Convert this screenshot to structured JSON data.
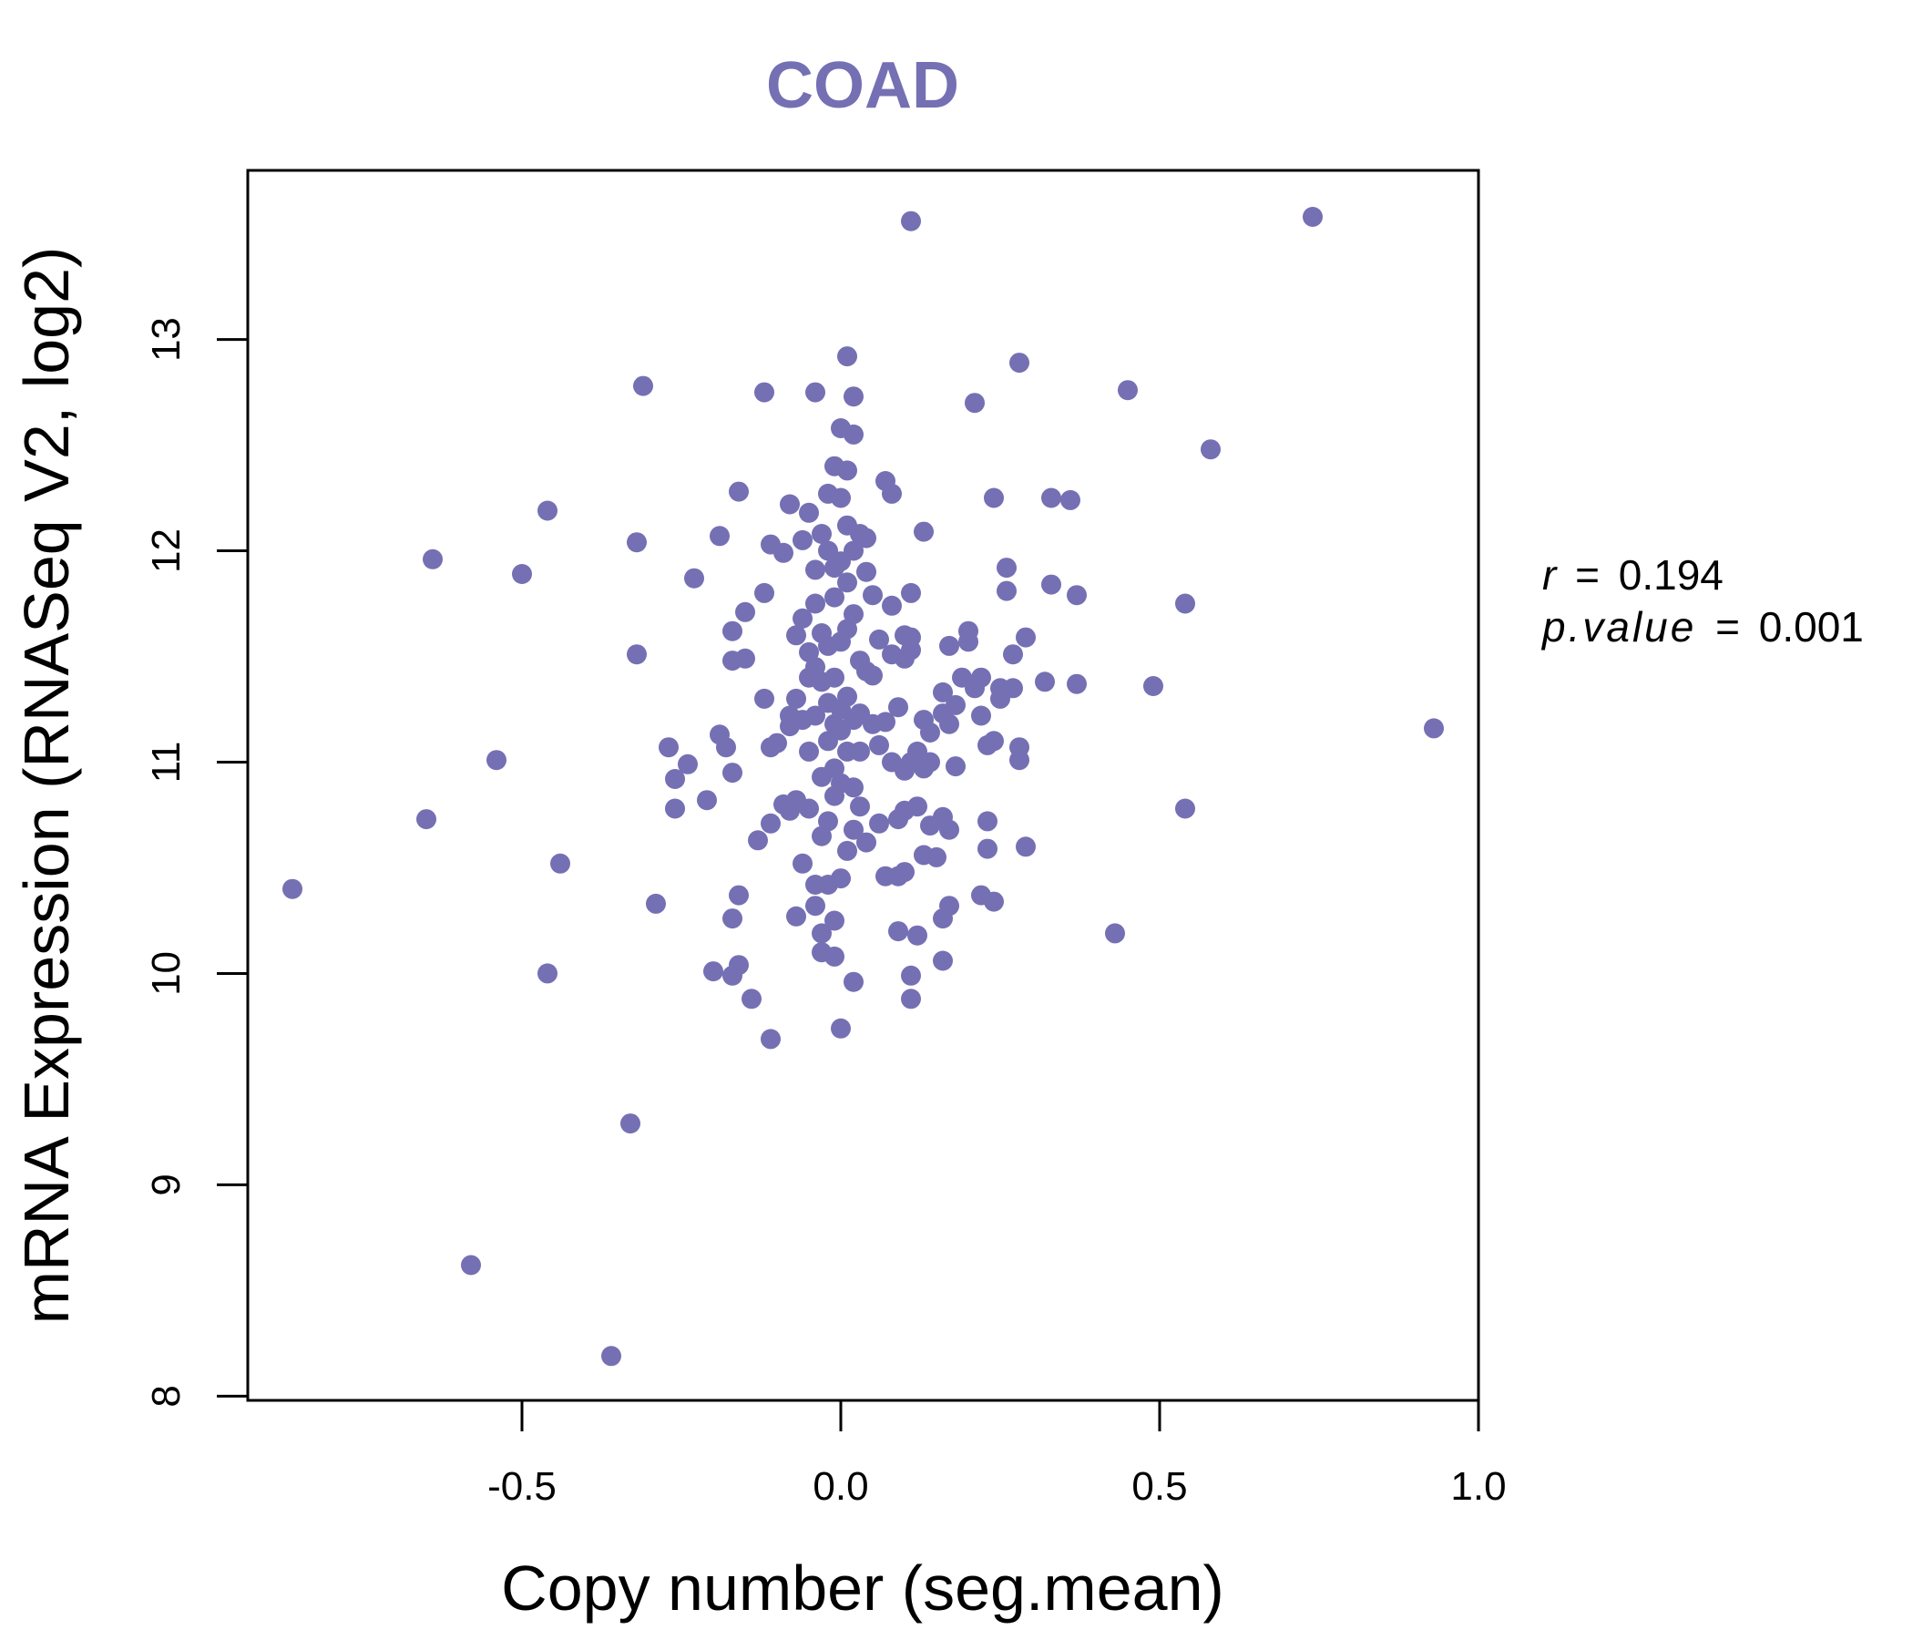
{
  "colors": {
    "point": "#7570b3",
    "title": "#7570b3",
    "axis": "#000000",
    "background": "#ffffff"
  },
  "chart_data": {
    "type": "scatter",
    "title": "COAD",
    "xlabel": "Copy number (seg.mean)",
    "ylabel": "mRNA Expression (RNASeq V2, log2)",
    "xlim": [
      -0.93,
      1.0
    ],
    "ylim": [
      7.98,
      13.8
    ],
    "xticks": [
      -0.5,
      0.0,
      0.5,
      1.0
    ],
    "xtick_labels": [
      "-0.5",
      "0.0",
      "0.5",
      "1.0"
    ],
    "yticks": [
      8,
      9,
      10,
      11,
      12,
      13
    ],
    "ytick_labels": [
      "8",
      "9",
      "10",
      "11",
      "12",
      "13"
    ],
    "stats": {
      "r_label": "r",
      "r_value": "0.194",
      "p_label": "p.value",
      "p_value": "0.001",
      "eq": "="
    },
    "points": [
      [
        -0.86,
        10.4
      ],
      [
        -0.65,
        10.73
      ],
      [
        -0.64,
        11.96
      ],
      [
        -0.58,
        8.62
      ],
      [
        -0.54,
        11.01
      ],
      [
        -0.5,
        11.89
      ],
      [
        -0.46,
        12.19
      ],
      [
        -0.46,
        10.0
      ],
      [
        -0.44,
        10.52
      ],
      [
        -0.36,
        8.19
      ],
      [
        -0.33,
        9.29
      ],
      [
        -0.32,
        12.04
      ],
      [
        -0.32,
        11.51
      ],
      [
        -0.31,
        12.78
      ],
      [
        -0.29,
        10.33
      ],
      [
        -0.27,
        11.07
      ],
      [
        -0.26,
        10.92
      ],
      [
        -0.26,
        10.78
      ],
      [
        -0.24,
        10.99
      ],
      [
        -0.23,
        11.87
      ],
      [
        -0.21,
        10.82
      ],
      [
        -0.2,
        10.01
      ],
      [
        -0.19,
        12.07
      ],
      [
        -0.19,
        11.13
      ],
      [
        -0.18,
        11.07
      ],
      [
        -0.17,
        11.62
      ],
      [
        -0.17,
        11.48
      ],
      [
        -0.17,
        10.95
      ],
      [
        -0.17,
        10.26
      ],
      [
        -0.17,
        9.99
      ],
      [
        -0.16,
        12.28
      ],
      [
        -0.16,
        10.37
      ],
      [
        -0.16,
        10.04
      ],
      [
        -0.15,
        11.71
      ],
      [
        -0.15,
        11.49
      ],
      [
        -0.14,
        9.88
      ],
      [
        -0.13,
        10.63
      ],
      [
        -0.12,
        12.75
      ],
      [
        -0.12,
        11.8
      ],
      [
        -0.12,
        11.3
      ],
      [
        -0.11,
        12.03
      ],
      [
        -0.11,
        11.07
      ],
      [
        -0.11,
        10.71
      ],
      [
        -0.11,
        9.69
      ],
      [
        -0.1,
        11.09
      ],
      [
        -0.09,
        11.99
      ],
      [
        -0.09,
        10.8
      ],
      [
        -0.08,
        12.22
      ],
      [
        -0.08,
        11.22
      ],
      [
        -0.08,
        11.17
      ],
      [
        -0.08,
        10.77
      ],
      [
        -0.07,
        11.6
      ],
      [
        -0.07,
        11.3
      ],
      [
        -0.07,
        10.82
      ],
      [
        -0.07,
        10.27
      ],
      [
        -0.06,
        12.05
      ],
      [
        -0.06,
        11.68
      ],
      [
        -0.06,
        11.2
      ],
      [
        -0.06,
        10.52
      ],
      [
        -0.05,
        12.18
      ],
      [
        -0.05,
        11.52
      ],
      [
        -0.05,
        11.4
      ],
      [
        -0.05,
        11.05
      ],
      [
        -0.05,
        10.78
      ],
      [
        -0.04,
        11.91
      ],
      [
        -0.04,
        11.75
      ],
      [
        -0.04,
        11.45
      ],
      [
        -0.04,
        11.22
      ],
      [
        -0.04,
        10.42
      ],
      [
        -0.04,
        10.32
      ],
      [
        -0.04,
        12.75
      ],
      [
        -0.03,
        12.08
      ],
      [
        -0.03,
        11.61
      ],
      [
        -0.03,
        11.38
      ],
      [
        -0.03,
        10.93
      ],
      [
        -0.03,
        10.65
      ],
      [
        -0.03,
        10.19
      ],
      [
        -0.03,
        10.1
      ],
      [
        -0.02,
        12.27
      ],
      [
        -0.02,
        12.0
      ],
      [
        -0.02,
        11.55
      ],
      [
        -0.02,
        11.28
      ],
      [
        -0.02,
        11.1
      ],
      [
        -0.02,
        10.72
      ],
      [
        -0.02,
        10.42
      ],
      [
        -0.01,
        12.4
      ],
      [
        -0.01,
        11.92
      ],
      [
        -0.01,
        11.78
      ],
      [
        -0.01,
        11.4
      ],
      [
        -0.01,
        11.18
      ],
      [
        -0.01,
        10.97
      ],
      [
        -0.01,
        10.84
      ],
      [
        -0.01,
        10.25
      ],
      [
        -0.01,
        10.08
      ],
      [
        0.0,
        12.58
      ],
      [
        0.0,
        12.25
      ],
      [
        0.0,
        11.95
      ],
      [
        0.0,
        11.57
      ],
      [
        0.0,
        11.25
      ],
      [
        0.0,
        11.15
      ],
      [
        0.0,
        10.9
      ],
      [
        0.0,
        10.45
      ],
      [
        0.0,
        9.74
      ],
      [
        0.01,
        12.92
      ],
      [
        0.01,
        12.38
      ],
      [
        0.01,
        12.12
      ],
      [
        0.01,
        11.85
      ],
      [
        0.01,
        11.63
      ],
      [
        0.01,
        11.31
      ],
      [
        0.01,
        11.05
      ],
      [
        0.01,
        10.58
      ],
      [
        0.02,
        12.73
      ],
      [
        0.02,
        12.55
      ],
      [
        0.02,
        12.0
      ],
      [
        0.02,
        11.7
      ],
      [
        0.02,
        11.2
      ],
      [
        0.02,
        10.88
      ],
      [
        0.02,
        10.68
      ],
      [
        0.02,
        9.96
      ],
      [
        0.03,
        12.08
      ],
      [
        0.03,
        11.48
      ],
      [
        0.03,
        11.23
      ],
      [
        0.03,
        11.05
      ],
      [
        0.03,
        10.79
      ],
      [
        0.04,
        12.06
      ],
      [
        0.04,
        11.9
      ],
      [
        0.04,
        11.43
      ],
      [
        0.04,
        10.62
      ],
      [
        0.05,
        11.79
      ],
      [
        0.05,
        11.41
      ],
      [
        0.05,
        11.18
      ],
      [
        0.06,
        11.58
      ],
      [
        0.06,
        11.08
      ],
      [
        0.06,
        10.71
      ],
      [
        0.07,
        12.33
      ],
      [
        0.07,
        11.19
      ],
      [
        0.07,
        10.46
      ],
      [
        0.08,
        12.27
      ],
      [
        0.08,
        11.74
      ],
      [
        0.08,
        11.51
      ],
      [
        0.08,
        11.0
      ],
      [
        0.09,
        11.26
      ],
      [
        0.09,
        10.73
      ],
      [
        0.09,
        10.46
      ],
      [
        0.09,
        10.2
      ],
      [
        0.1,
        11.6
      ],
      [
        0.1,
        11.49
      ],
      [
        0.1,
        10.96
      ],
      [
        0.1,
        10.77
      ],
      [
        0.1,
        10.48
      ],
      [
        0.11,
        11.59
      ],
      [
        0.11,
        11.53
      ],
      [
        0.11,
        11.0
      ],
      [
        0.11,
        9.99
      ],
      [
        0.11,
        9.88
      ],
      [
        0.11,
        13.56
      ],
      [
        0.11,
        11.8
      ],
      [
        0.12,
        11.05
      ],
      [
        0.12,
        10.79
      ],
      [
        0.12,
        10.18
      ],
      [
        0.13,
        12.09
      ],
      [
        0.13,
        11.2
      ],
      [
        0.13,
        10.97
      ],
      [
        0.13,
        10.56
      ],
      [
        0.14,
        11.14
      ],
      [
        0.14,
        11.0
      ],
      [
        0.14,
        10.7
      ],
      [
        0.15,
        10.55
      ],
      [
        0.16,
        11.33
      ],
      [
        0.16,
        11.23
      ],
      [
        0.16,
        10.74
      ],
      [
        0.16,
        10.26
      ],
      [
        0.16,
        10.06
      ],
      [
        0.17,
        11.55
      ],
      [
        0.17,
        11.18
      ],
      [
        0.17,
        10.68
      ],
      [
        0.17,
        10.32
      ],
      [
        0.18,
        11.27
      ],
      [
        0.18,
        10.98
      ],
      [
        0.19,
        11.4
      ],
      [
        0.2,
        11.62
      ],
      [
        0.2,
        11.57
      ],
      [
        0.21,
        11.35
      ],
      [
        0.21,
        12.7
      ],
      [
        0.22,
        11.22
      ],
      [
        0.22,
        11.4
      ],
      [
        0.22,
        10.37
      ],
      [
        0.23,
        11.08
      ],
      [
        0.23,
        10.72
      ],
      [
        0.23,
        10.59
      ],
      [
        0.24,
        12.25
      ],
      [
        0.24,
        11.1
      ],
      [
        0.24,
        10.34
      ],
      [
        0.25,
        11.35
      ],
      [
        0.25,
        11.3
      ],
      [
        0.26,
        11.92
      ],
      [
        0.26,
        11.81
      ],
      [
        0.27,
        11.51
      ],
      [
        0.27,
        11.35
      ],
      [
        0.28,
        12.89
      ],
      [
        0.28,
        11.07
      ],
      [
        0.28,
        11.01
      ],
      [
        0.29,
        11.59
      ],
      [
        0.29,
        10.6
      ],
      [
        0.32,
        11.38
      ],
      [
        0.33,
        11.84
      ],
      [
        0.33,
        12.25
      ],
      [
        0.36,
        12.24
      ],
      [
        0.37,
        11.37
      ],
      [
        0.37,
        11.79
      ],
      [
        0.43,
        10.19
      ],
      [
        0.45,
        12.76
      ],
      [
        0.49,
        11.36
      ],
      [
        0.54,
        11.75
      ],
      [
        0.54,
        10.78
      ],
      [
        0.58,
        12.48
      ],
      [
        0.74,
        13.58
      ],
      [
        0.93,
        11.16
      ]
    ]
  }
}
